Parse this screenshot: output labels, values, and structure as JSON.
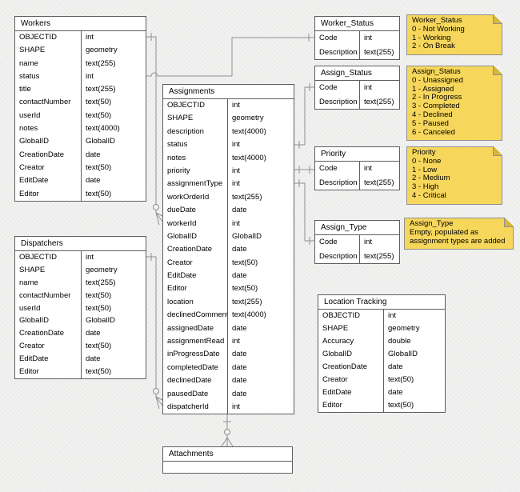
{
  "canvas": {
    "background": "#f2f2f1"
  },
  "colors": {
    "table_fill": "#ffffff",
    "table_border": "#5e5e5e",
    "connector": "#8f8f8f",
    "note_fill": "#f6d75c",
    "note_fold": "#d5b63e",
    "note_border": "#909090",
    "text": "#000000"
  },
  "tables": [
    {
      "id": "workers",
      "title": "Workers",
      "fields": [
        [
          "OBJECTID",
          "int"
        ],
        [
          "SHAPE",
          "geometry"
        ],
        [
          "name",
          "text(255)"
        ],
        [
          "status",
          "int"
        ],
        [
          "title",
          "text(255)"
        ],
        [
          "contactNumber",
          "text(50)"
        ],
        [
          "userId",
          "text(50)"
        ],
        [
          "notes",
          "text(4000)"
        ],
        [
          "GlobalID",
          "GlobalID"
        ],
        [
          "CreationDate",
          "date"
        ],
        [
          "Creator",
          "text(50)"
        ],
        [
          "EditDate",
          "date"
        ],
        [
          "Editor",
          "text(50)"
        ]
      ]
    },
    {
      "id": "dispatchers",
      "title": "Dispatchers",
      "fields": [
        [
          "OBJECTID",
          "int"
        ],
        [
          "SHAPE",
          "geometry"
        ],
        [
          "name",
          "text(255)"
        ],
        [
          "contactNumber",
          "text(50)"
        ],
        [
          "userId",
          "text(50)"
        ],
        [
          "GlobalID",
          "GlobalID"
        ],
        [
          "CreationDate",
          "date"
        ],
        [
          "Creator",
          "text(50)"
        ],
        [
          "EditDate",
          "date"
        ],
        [
          "Editor",
          "text(50)"
        ]
      ]
    },
    {
      "id": "assignments",
      "title": "Assignments",
      "fields": [
        [
          "OBJECTID",
          "int"
        ],
        [
          "SHAPE",
          "geometry"
        ],
        [
          "description",
          "text(4000)"
        ],
        [
          "status",
          "int"
        ],
        [
          "notes",
          "text(4000)"
        ],
        [
          "priority",
          "int"
        ],
        [
          "assignmentType",
          "int"
        ],
        [
          "workOrderId",
          "text(255)"
        ],
        [
          "dueDate",
          "date"
        ],
        [
          "workerId",
          "int"
        ],
        [
          "GlobalID",
          "GlobalID"
        ],
        [
          "CreationDate",
          "date"
        ],
        [
          "Creator",
          "text(50)"
        ],
        [
          "EditDate",
          "date"
        ],
        [
          "Editor",
          "text(50)"
        ],
        [
          "location",
          "text(255)"
        ],
        [
          "declinedComment",
          "text(4000)"
        ],
        [
          "assignedDate",
          "date"
        ],
        [
          "assignmentRead",
          "int"
        ],
        [
          "inProgressDate",
          "date"
        ],
        [
          "completedDate",
          "date"
        ],
        [
          "declinedDate",
          "date"
        ],
        [
          "pausedDate",
          "date"
        ],
        [
          "dispatcherId",
          "int"
        ]
      ]
    },
    {
      "id": "worker-status",
      "title": "Worker_Status",
      "fields": [
        [
          "Code",
          "int"
        ],
        [
          "Description",
          "text(255)"
        ]
      ]
    },
    {
      "id": "assign-status",
      "title": "Assign_Status",
      "fields": [
        [
          "Code",
          "int"
        ],
        [
          "Description",
          "text(255)"
        ]
      ]
    },
    {
      "id": "priority",
      "title": "Priority",
      "fields": [
        [
          "Code",
          "int"
        ],
        [
          "Description",
          "text(255)"
        ]
      ]
    },
    {
      "id": "assign-type",
      "title": "Assign_Type",
      "fields": [
        [
          "Code",
          "int"
        ],
        [
          "Description",
          "text(255)"
        ]
      ]
    },
    {
      "id": "location-tracking",
      "title": "Location Tracking",
      "fields": [
        [
          "OBJECTID",
          "int"
        ],
        [
          "SHAPE",
          "geometry"
        ],
        [
          "Accuracy",
          "double"
        ],
        [
          "GlobalID",
          "GlobalID"
        ],
        [
          "CreationDate",
          "date"
        ],
        [
          "Creator",
          "text(50)"
        ],
        [
          "EditDate",
          "date"
        ],
        [
          "Editor",
          "text(50)"
        ]
      ]
    },
    {
      "id": "attachments",
      "title": "Attachments",
      "fields": []
    }
  ],
  "notes": [
    {
      "id": "worker-status-note",
      "title": "Worker_Status",
      "lines": [
        "0 - Not Working",
        "1 - Working",
        "2 - On Break"
      ]
    },
    {
      "id": "assign-status-note",
      "title": "Assign_Status",
      "lines": [
        "0 - Unassigned",
        "1 - Assigned",
        "2 - In Progress",
        "3 - Completed",
        "4 - Declined",
        "5 - Paused",
        "6 - Canceled"
      ]
    },
    {
      "id": "priority-note",
      "title": "Priority",
      "lines": [
        "0 - None",
        "1 - Low",
        "2 - Medium",
        "3 - High",
        "4 - Critical"
      ]
    },
    {
      "id": "assign-type-note",
      "title": "Assign_Type",
      "lines": [
        "Empty, populated as",
        "assignment types are added"
      ]
    }
  ],
  "relationships": [
    {
      "from": "Workers.status",
      "to": "Worker_Status.Code",
      "to_end": "one"
    },
    {
      "from": "Workers.OBJECTID",
      "to": "Assignments.workerId",
      "to_end": "zero-or-many"
    },
    {
      "from": "Dispatchers.OBJECTID",
      "to": "Assignments.dispatcherId",
      "to_end": "zero-or-many"
    },
    {
      "from": "Assignments.status",
      "to": "Assign_Status.Code",
      "to_end": "one"
    },
    {
      "from": "Assignments.priority",
      "to": "Priority.Code",
      "to_end": "one"
    },
    {
      "from": "Assignments.assignmentType",
      "to": "Assign_Type.Code",
      "to_end": "one"
    },
    {
      "from": "Assignments",
      "to": "Attachments",
      "to_end": "zero-or-many"
    }
  ]
}
